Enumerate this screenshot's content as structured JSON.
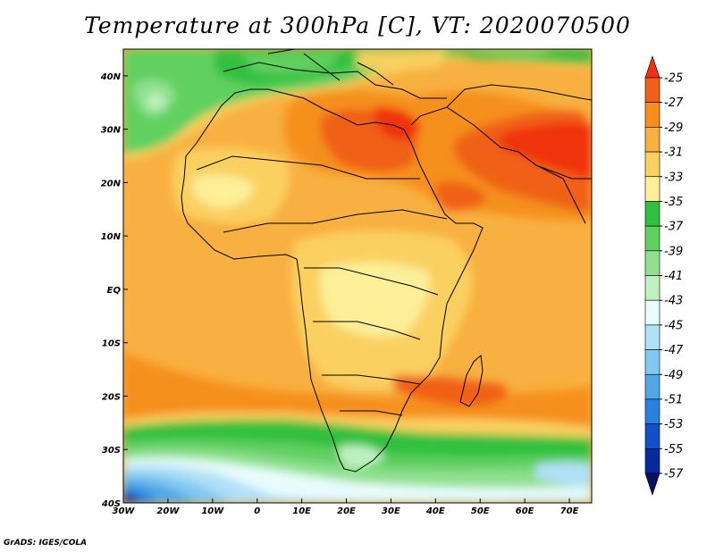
{
  "title": "Temperature at 300hPa [C], VT: 2020070500",
  "credit": "GrADS: IGES/COLA",
  "map": {
    "lon_range": [
      -30,
      75
    ],
    "lat_range": [
      -40,
      45
    ],
    "x_ticks": [
      "30W",
      "20W",
      "10W",
      "0",
      "10E",
      "20E",
      "30E",
      "40E",
      "50E",
      "60E",
      "70E"
    ],
    "y_ticks": [
      "40N",
      "30N",
      "20N",
      "10N",
      "EQ",
      "10S",
      "20S",
      "30S",
      "40S"
    ]
  },
  "colorbar": {
    "labels": [
      "-25",
      "-27",
      "-29",
      "-31",
      "-33",
      "-35",
      "-37",
      "-39",
      "-41",
      "-43",
      "-45",
      "-47",
      "-49",
      "-51",
      "-53",
      "-55",
      "-57"
    ],
    "colors": [
      "#f03010",
      "#f06018",
      "#f5901c",
      "#f8b040",
      "#fad060",
      "#fcef98",
      "#30c040",
      "#60d060",
      "#90e090",
      "#c0f0c0",
      "#e8fcfc",
      "#b0e0f8",
      "#80c8f0",
      "#50a8e8",
      "#2880e0",
      "#1050c8",
      "#0828a0",
      "#081060"
    ]
  }
}
